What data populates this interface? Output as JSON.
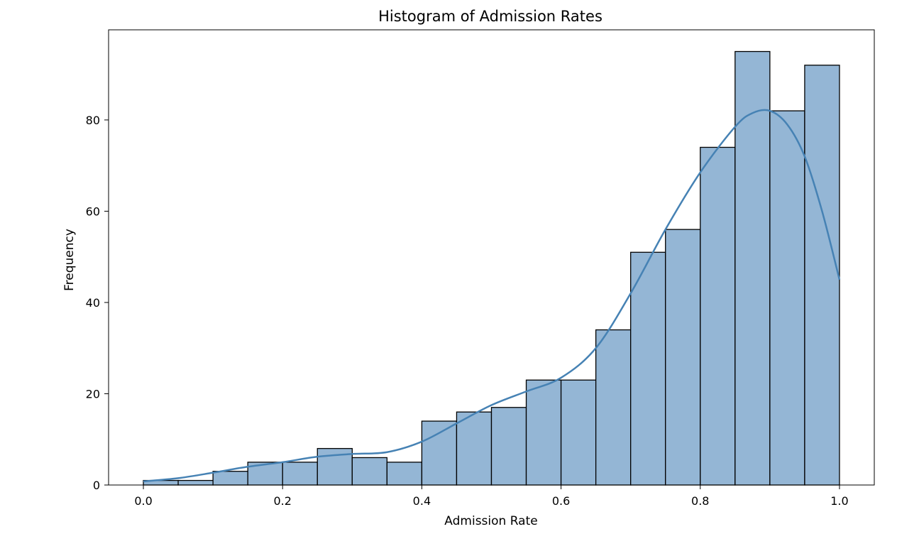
{
  "chart_data": {
    "type": "bar",
    "subtype": "histogram",
    "title": "Histogram of Admission Rates",
    "xlabel": "Admission Rate",
    "ylabel": "Frequency",
    "xlim": [
      -0.05,
      1.05
    ],
    "ylim": [
      0,
      99.75
    ],
    "xticks": [
      "0.0",
      "0.2",
      "0.4",
      "0.6",
      "0.8",
      "1.0"
    ],
    "xtick_values": [
      0.0,
      0.2,
      0.4,
      0.6,
      0.8,
      1.0
    ],
    "yticks": [
      "0",
      "20",
      "40",
      "60",
      "80"
    ],
    "ytick_values": [
      0,
      20,
      40,
      60,
      80
    ],
    "grid": false,
    "bin_edges": [
      0.0,
      0.05,
      0.1,
      0.15,
      0.2,
      0.25,
      0.3,
      0.35,
      0.4,
      0.45,
      0.5,
      0.55,
      0.6,
      0.65,
      0.7,
      0.75,
      0.8,
      0.85,
      0.9,
      0.95,
      1.0
    ],
    "values": [
      1,
      1,
      3,
      5,
      5,
      8,
      6,
      5,
      14,
      16,
      17,
      23,
      23,
      34,
      51,
      56,
      74,
      95,
      82,
      92
    ],
    "kde": {
      "x": [
        0.0,
        0.05,
        0.1,
        0.15,
        0.2,
        0.25,
        0.3,
        0.35,
        0.4,
        0.45,
        0.5,
        0.55,
        0.6,
        0.65,
        0.7,
        0.75,
        0.8,
        0.85,
        0.875,
        0.9,
        0.925,
        0.95,
        0.975,
        1.0
      ],
      "y": [
        0.8,
        1.5,
        2.7,
        4.0,
        5.0,
        6.2,
        6.8,
        7.2,
        9.5,
        13.5,
        17.5,
        20.5,
        23.5,
        30.0,
        42.0,
        56.0,
        68.5,
        78.5,
        81.5,
        82.0,
        79.0,
        72.0,
        60.0,
        45.0
      ],
      "color": "#4682b4"
    },
    "colors": {
      "bar_fill": "#94b6d5",
      "bar_edge": "#000000",
      "kde_line": "#4682b4"
    }
  }
}
